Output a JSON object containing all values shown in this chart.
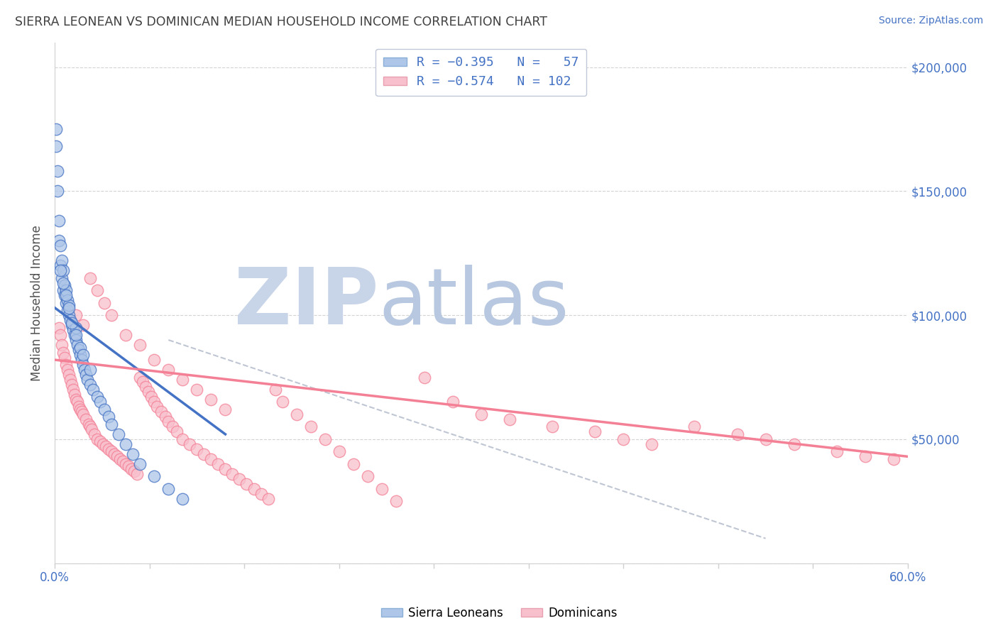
{
  "title": "SIERRA LEONEAN VS DOMINICAN MEDIAN HOUSEHOLD INCOME CORRELATION CHART",
  "source": "Source: ZipAtlas.com",
  "ylabel": "Median Household Income",
  "xlim": [
    0.0,
    0.6
  ],
  "ylim": [
    0,
    210000
  ],
  "xtick_positions": [
    0.0,
    0.06667,
    0.13333,
    0.2,
    0.26667,
    0.33333,
    0.4,
    0.46667,
    0.53333,
    0.6
  ],
  "xtick_labels_show": {
    "0.0": "0.0%",
    "0.60": "60.0%"
  },
  "yticks": [
    0,
    50000,
    100000,
    150000,
    200000
  ],
  "yticklabels_right": [
    "",
    "$50,000",
    "$100,000",
    "$150,000",
    "$200,000"
  ],
  "blue_color": "#4472c4",
  "pink_color": "#f48096",
  "blue_fill": "#aec6e8",
  "pink_fill": "#f8c0cc",
  "background_color": "#ffffff",
  "grid_color": "#c8c8c8",
  "watermark_zip_color": "#c8d4e8",
  "watermark_atlas_color": "#b8c8e0",
  "tick_label_color": "#4472c4",
  "title_color": "#404040",
  "ylabel_color": "#505050",
  "blue_x": [
    0.001,
    0.001,
    0.002,
    0.002,
    0.003,
    0.003,
    0.004,
    0.004,
    0.005,
    0.005,
    0.006,
    0.006,
    0.007,
    0.007,
    0.008,
    0.008,
    0.009,
    0.009,
    0.01,
    0.01,
    0.011,
    0.012,
    0.013,
    0.014,
    0.015,
    0.015,
    0.016,
    0.017,
    0.018,
    0.019,
    0.02,
    0.021,
    0.022,
    0.023,
    0.025,
    0.027,
    0.03,
    0.032,
    0.035,
    0.038,
    0.04,
    0.045,
    0.05,
    0.055,
    0.06,
    0.07,
    0.08,
    0.09,
    0.01,
    0.008,
    0.006,
    0.004,
    0.012,
    0.015,
    0.018,
    0.02,
    0.025
  ],
  "blue_y": [
    168000,
    175000,
    150000,
    158000,
    130000,
    138000,
    120000,
    128000,
    115000,
    122000,
    110000,
    118000,
    108000,
    112000,
    105000,
    110000,
    102000,
    106000,
    100000,
    104000,
    98000,
    96000,
    94000,
    92000,
    90000,
    95000,
    88000,
    86000,
    84000,
    82000,
    80000,
    78000,
    76000,
    74000,
    72000,
    70000,
    67000,
    65000,
    62000,
    59000,
    56000,
    52000,
    48000,
    44000,
    40000,
    35000,
    30000,
    26000,
    103000,
    108000,
    113000,
    118000,
    97000,
    92000,
    87000,
    84000,
    78000
  ],
  "pink_x": [
    0.003,
    0.004,
    0.005,
    0.006,
    0.007,
    0.008,
    0.009,
    0.01,
    0.011,
    0.012,
    0.013,
    0.014,
    0.015,
    0.016,
    0.017,
    0.018,
    0.019,
    0.02,
    0.022,
    0.024,
    0.025,
    0.026,
    0.028,
    0.03,
    0.032,
    0.034,
    0.036,
    0.038,
    0.04,
    0.042,
    0.044,
    0.046,
    0.048,
    0.05,
    0.052,
    0.054,
    0.056,
    0.058,
    0.06,
    0.062,
    0.064,
    0.066,
    0.068,
    0.07,
    0.072,
    0.075,
    0.078,
    0.08,
    0.083,
    0.086,
    0.09,
    0.095,
    0.1,
    0.105,
    0.11,
    0.115,
    0.12,
    0.125,
    0.13,
    0.135,
    0.14,
    0.145,
    0.15,
    0.155,
    0.16,
    0.17,
    0.18,
    0.19,
    0.2,
    0.21,
    0.22,
    0.23,
    0.24,
    0.26,
    0.28,
    0.3,
    0.32,
    0.35,
    0.38,
    0.4,
    0.42,
    0.45,
    0.48,
    0.5,
    0.52,
    0.55,
    0.57,
    0.59,
    0.015,
    0.02,
    0.025,
    0.03,
    0.035,
    0.04,
    0.05,
    0.06,
    0.07,
    0.08,
    0.09,
    0.1,
    0.11,
    0.12
  ],
  "pink_y": [
    95000,
    92000,
    88000,
    85000,
    83000,
    80000,
    78000,
    76000,
    74000,
    72000,
    70000,
    68000,
    66000,
    65000,
    63000,
    62000,
    61000,
    60000,
    58000,
    56000,
    55000,
    54000,
    52000,
    50000,
    49000,
    48000,
    47000,
    46000,
    45000,
    44000,
    43000,
    42000,
    41000,
    40000,
    39000,
    38000,
    37000,
    36000,
    75000,
    73000,
    71000,
    69000,
    67000,
    65000,
    63000,
    61000,
    59000,
    57000,
    55000,
    53000,
    50000,
    48000,
    46000,
    44000,
    42000,
    40000,
    38000,
    36000,
    34000,
    32000,
    30000,
    28000,
    26000,
    70000,
    65000,
    60000,
    55000,
    50000,
    45000,
    40000,
    35000,
    30000,
    25000,
    75000,
    65000,
    60000,
    58000,
    55000,
    53000,
    50000,
    48000,
    55000,
    52000,
    50000,
    48000,
    45000,
    43000,
    42000,
    100000,
    96000,
    115000,
    110000,
    105000,
    100000,
    92000,
    88000,
    82000,
    78000,
    74000,
    70000,
    66000,
    62000
  ],
  "blue_line_x": [
    0.0,
    0.12
  ],
  "blue_line_y": [
    103000,
    52000
  ],
  "pink_line_x": [
    0.0,
    0.6
  ],
  "pink_line_y": [
    82000,
    43000
  ],
  "dash_line_x": [
    0.08,
    0.5
  ],
  "dash_line_y": [
    90000,
    10000
  ]
}
